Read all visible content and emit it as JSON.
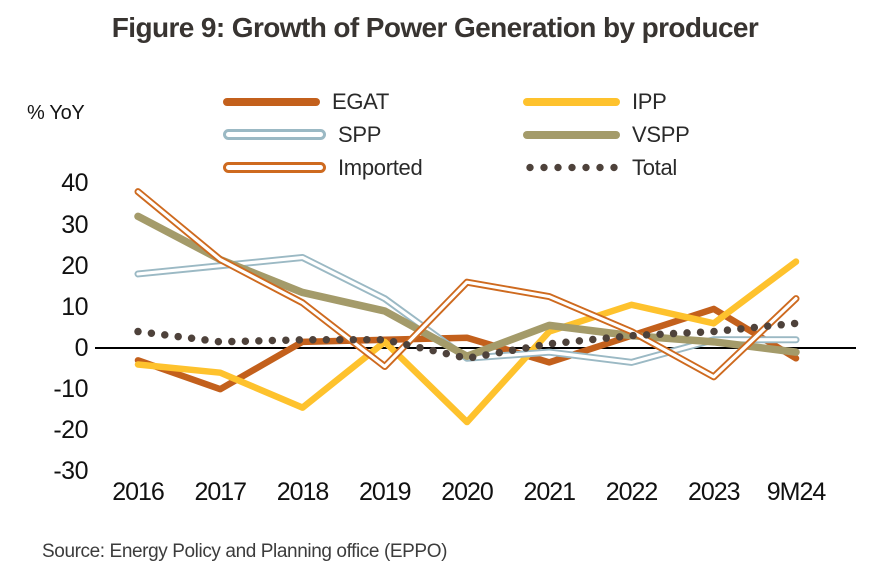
{
  "title": "Figure 9: Growth of Power Generation by producer",
  "unit_label": "% YoY",
  "source": {
    "text": "Source: Energy Policy and Planning office (EPPO)"
  },
  "chart_data": {
    "type": "line",
    "title": "Figure 9: Growth of Power Generation by producer",
    "ylabel": "% YoY",
    "xlabel": "",
    "categories": [
      "2016",
      "2017",
      "2018",
      "2019",
      "2020",
      "2021",
      "2022",
      "2023",
      "9M24"
    ],
    "series": [
      {
        "name": "EGAT",
        "style": "solid",
        "color": "#C3601C",
        "values": [
          -3,
          -10,
          1.5,
          2,
          2.5,
          -3.5,
          3,
          9.5,
          -2.5
        ]
      },
      {
        "name": "IPP",
        "style": "solid",
        "color": "#FEC22D",
        "values": [
          -4,
          -6,
          -14.5,
          1.5,
          -18,
          4,
          10.5,
          6,
          21
        ]
      },
      {
        "name": "SPP",
        "style": "hollow",
        "color": "#9BB9C4",
        "values": [
          18,
          20,
          22,
          12,
          -2.5,
          -1,
          -3.5,
          2,
          2
        ]
      },
      {
        "name": "VSPP",
        "style": "solid",
        "color": "#A49B6A",
        "values": [
          32,
          21.5,
          13.5,
          9,
          -2,
          5.5,
          3,
          1.5,
          -1
        ]
      },
      {
        "name": "Imported",
        "style": "hollow",
        "color": "#CE6A1F",
        "values": [
          38,
          21.5,
          11,
          -4.5,
          16,
          12.5,
          4,
          -7,
          12
        ]
      },
      {
        "name": "Total",
        "style": "dotted",
        "color": "#4E423B",
        "values": [
          4,
          1.5,
          2,
          2,
          -2.5,
          1,
          3,
          4,
          6
        ]
      }
    ],
    "y_ticks": [
      40,
      30,
      20,
      10,
      0,
      -10,
      -20,
      -30
    ],
    "ylim": [
      -30,
      40
    ],
    "grid": false,
    "legend_position": "top",
    "axis_color": "#000000"
  }
}
